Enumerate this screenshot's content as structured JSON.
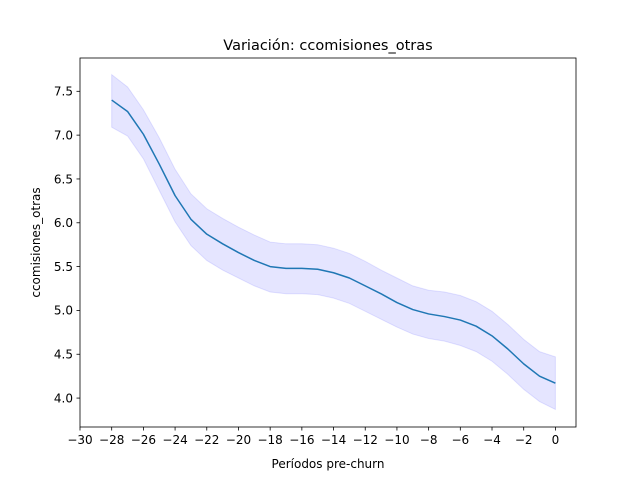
{
  "chart_data": {
    "type": "line",
    "title": "Variación: ccomisiones_otras",
    "xlabel": "Períodos pre-churn",
    "ylabel": "ccomisiones_otras",
    "xlim": [
      -30,
      1.3
    ],
    "ylim": [
      3.67,
      7.88
    ],
    "xticks": [
      -30,
      -28,
      -26,
      -24,
      -22,
      -20,
      -18,
      -16,
      -14,
      -12,
      -10,
      -8,
      -6,
      -4,
      -2,
      0
    ],
    "xtick_labels": [
      "−30",
      "−28",
      "−26",
      "−24",
      "−22",
      "−20",
      "−18",
      "−16",
      "−14",
      "−12",
      "−10",
      "−8",
      "−6",
      "−4",
      "−2",
      "0"
    ],
    "yticks": [
      4.0,
      4.5,
      5.0,
      5.5,
      6.0,
      6.5,
      7.0,
      7.5
    ],
    "ytick_labels": [
      "4.0",
      "4.5",
      "5.0",
      "5.5",
      "6.0",
      "6.5",
      "7.0",
      "7.5"
    ],
    "grid": false,
    "line_color": "#1f77b4",
    "band_color": "#0000ff",
    "x": [
      -28,
      -27,
      -26,
      -25,
      -24,
      -23,
      -22,
      -21,
      -20,
      -19,
      -18,
      -17,
      -16,
      -15,
      -14,
      -13,
      -12,
      -11,
      -10,
      -9,
      -8,
      -7,
      -6,
      -5,
      -4,
      -3,
      -2,
      -1,
      0
    ],
    "series": [
      {
        "values": [
          7.4,
          7.27,
          7.01,
          6.67,
          6.31,
          6.04,
          5.87,
          5.76,
          5.66,
          5.57,
          5.5,
          5.48,
          5.48,
          5.47,
          5.43,
          5.37,
          5.28,
          5.19,
          5.09,
          5.01,
          4.96,
          4.93,
          4.89,
          4.82,
          4.71,
          4.56,
          4.39,
          4.25,
          4.17
        ],
        "ci_upper": [
          7.69,
          7.55,
          7.29,
          6.97,
          6.61,
          6.33,
          6.16,
          6.05,
          5.95,
          5.86,
          5.78,
          5.76,
          5.76,
          5.75,
          5.71,
          5.65,
          5.56,
          5.46,
          5.37,
          5.28,
          5.23,
          5.21,
          5.17,
          5.1,
          4.99,
          4.84,
          4.67,
          4.53,
          4.47
        ],
        "ci_lower": [
          7.09,
          6.99,
          6.73,
          6.37,
          6.01,
          5.74,
          5.57,
          5.46,
          5.37,
          5.28,
          5.21,
          5.19,
          5.19,
          5.18,
          5.14,
          5.08,
          4.99,
          4.9,
          4.81,
          4.73,
          4.68,
          4.65,
          4.6,
          4.53,
          4.42,
          4.27,
          4.1,
          3.96,
          3.87
        ]
      }
    ]
  }
}
